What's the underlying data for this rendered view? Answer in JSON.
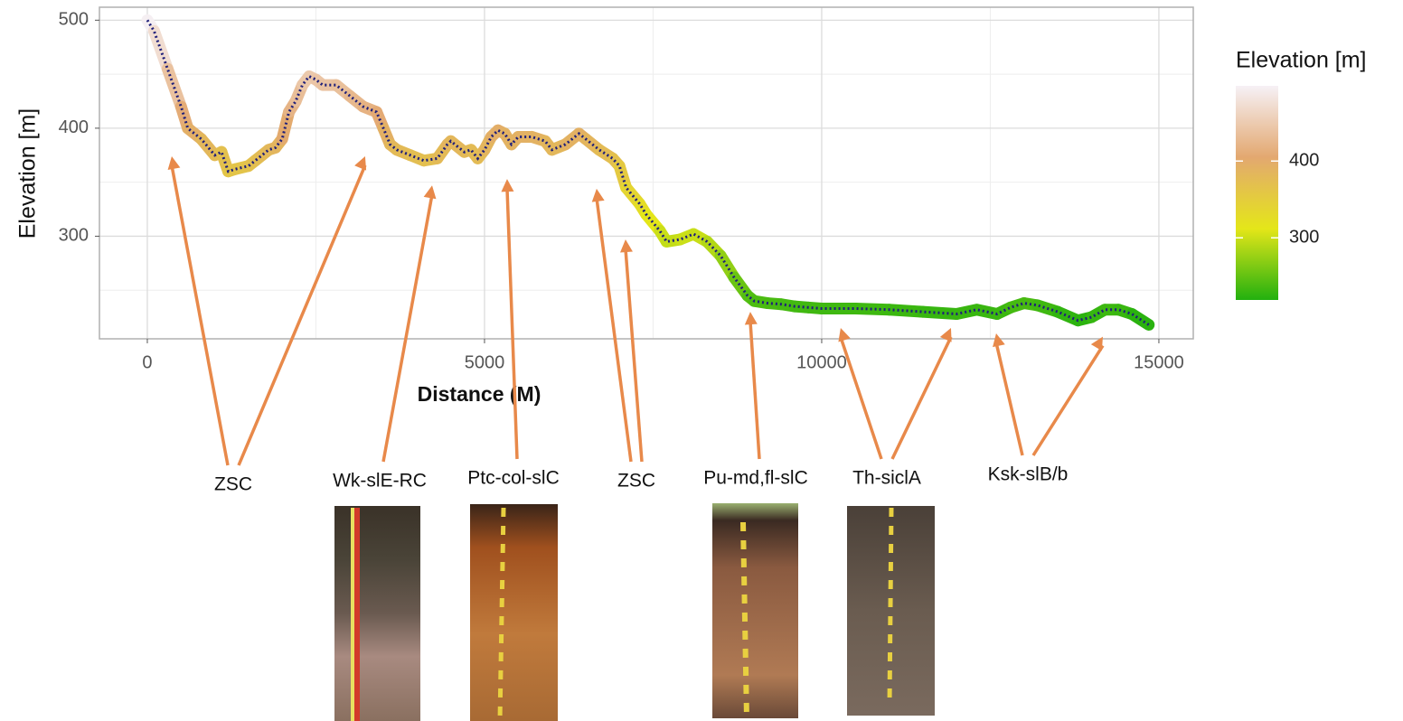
{
  "chart_data": {
    "type": "line",
    "xlabel": "Distance (M)",
    "ylabel": "Elevation [m]",
    "xlim": [
      -710,
      15510
    ],
    "ylim": [
      205,
      512
    ],
    "xticks": [
      0,
      5000,
      10000,
      15000
    ],
    "yticks": [
      300,
      400,
      500
    ],
    "xminor": [
      2500,
      7500,
      12500
    ],
    "yminor": [
      250,
      350,
      450
    ],
    "grid": true,
    "x": [
      0,
      100,
      300,
      500,
      600,
      800,
      1000,
      1100,
      1200,
      1300,
      1500,
      1600,
      1700,
      1800,
      1900,
      2000,
      2100,
      2200,
      2300,
      2400,
      2500,
      2600,
      2800,
      3000,
      3200,
      3400,
      3500,
      3600,
      3700,
      3900,
      4100,
      4300,
      4450,
      4500,
      4700,
      4800,
      4900,
      5000,
      5100,
      5200,
      5300,
      5400,
      5500,
      5700,
      5900,
      6000,
      6200,
      6400,
      6500,
      6700,
      6900,
      7000,
      7100,
      7300,
      7400,
      7600,
      7700,
      7900,
      8100,
      8300,
      8500,
      8700,
      8900,
      9000,
      9200,
      9400,
      9600,
      9800,
      10000,
      10500,
      11000,
      11500,
      12000,
      12300,
      12600,
      12800,
      13000,
      13200,
      13500,
      13800,
      14000,
      14200,
      14400,
      14600,
      14850
    ],
    "values": [
      500,
      490,
      455,
      420,
      400,
      390,
      375,
      378,
      360,
      362,
      365,
      370,
      375,
      380,
      382,
      390,
      415,
      425,
      440,
      448,
      445,
      440,
      440,
      430,
      420,
      415,
      400,
      385,
      380,
      375,
      370,
      372,
      385,
      388,
      378,
      380,
      372,
      380,
      392,
      398,
      395,
      385,
      392,
      392,
      388,
      380,
      385,
      395,
      390,
      380,
      372,
      365,
      345,
      330,
      320,
      305,
      295,
      297,
      302,
      295,
      282,
      262,
      245,
      240,
      238,
      237,
      235,
      234,
      233,
      233,
      232,
      230,
      228,
      232,
      228,
      234,
      238,
      236,
      230,
      222,
      225,
      232,
      232,
      228,
      218
    ],
    "line_color": "#1f1f7a",
    "colorbar": {
      "title": "Elevation [m]",
      "lim": [
        219,
        498
      ],
      "ticks": [
        300,
        400
      ],
      "colors": [
        "#22b00f",
        "#e4e619",
        "#e3a870",
        "#f6f1f6"
      ]
    },
    "annotations": [
      {
        "text": "ZSC",
        "targets": [
          [
            362,
            374
          ],
          [
            3230,
            374
          ]
        ]
      },
      {
        "text": "Wk-slE-RC",
        "targets": [
          [
            4223,
            347
          ]
        ]
      },
      {
        "text": "Ptc-col-slC",
        "targets": [
          [
            5335,
            353
          ]
        ]
      },
      {
        "text": "ZSC",
        "targets": [
          [
            6662,
            344
          ],
          [
            7091,
            297
          ]
        ]
      },
      {
        "text": "Pu-md,fl-slC",
        "targets": [
          [
            8941,
            230
          ]
        ]
      },
      {
        "text": "Th-siclA",
        "targets": [
          [
            10281,
            215
          ],
          [
            11917,
            215
          ]
        ]
      },
      {
        "text": "Ksk-slB/b",
        "targets": [
          [
            12587,
            210
          ],
          [
            14169,
            207
          ]
        ]
      }
    ]
  }
}
